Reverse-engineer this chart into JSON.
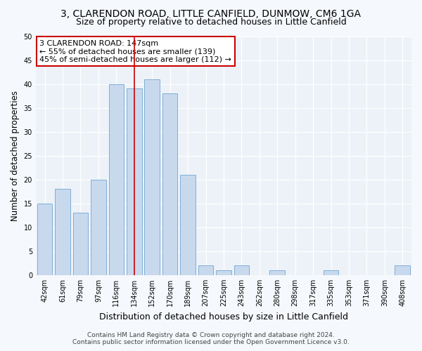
{
  "title_line1": "3, CLARENDON ROAD, LITTLE CANFIELD, DUNMOW, CM6 1GA",
  "title_line2": "Size of property relative to detached houses in Little Canfield",
  "xlabel": "Distribution of detached houses by size in Little Canfield",
  "ylabel": "Number of detached properties",
  "categories": [
    "42sqm",
    "61sqm",
    "79sqm",
    "97sqm",
    "116sqm",
    "134sqm",
    "152sqm",
    "170sqm",
    "189sqm",
    "207sqm",
    "225sqm",
    "243sqm",
    "262sqm",
    "280sqm",
    "298sqm",
    "317sqm",
    "335sqm",
    "353sqm",
    "371sqm",
    "390sqm",
    "408sqm"
  ],
  "values": [
    15,
    18,
    13,
    20,
    40,
    39,
    41,
    38,
    21,
    2,
    1,
    2,
    0,
    1,
    0,
    0,
    1,
    0,
    0,
    0,
    2
  ],
  "bar_color": "#c8d9ee",
  "bar_edge_color": "#7faed6",
  "vline_x_index": 5.5,
  "vline_color": "#cc0000",
  "annotation_line1": "3 CLARENDON ROAD: 147sqm",
  "annotation_line2": "← 55% of detached houses are smaller (139)",
  "annotation_line3": "45% of semi-detached houses are larger (112) →",
  "box_edge_color": "#cc0000",
  "ylim": [
    0,
    50
  ],
  "yticks": [
    0,
    5,
    10,
    15,
    20,
    25,
    30,
    35,
    40,
    45,
    50
  ],
  "plot_bg_color": "#edf2f8",
  "fig_bg_color": "#f5f8fc",
  "grid_color": "#ffffff",
  "footer_line1": "Contains HM Land Registry data © Crown copyright and database right 2024.",
  "footer_line2": "Contains public sector information licensed under the Open Government Licence v3.0.",
  "title_fontsize": 10,
  "subtitle_fontsize": 9,
  "xlabel_fontsize": 9,
  "ylabel_fontsize": 8.5,
  "tick_fontsize": 7,
  "annot_fontsize": 8,
  "footer_fontsize": 6.5
}
